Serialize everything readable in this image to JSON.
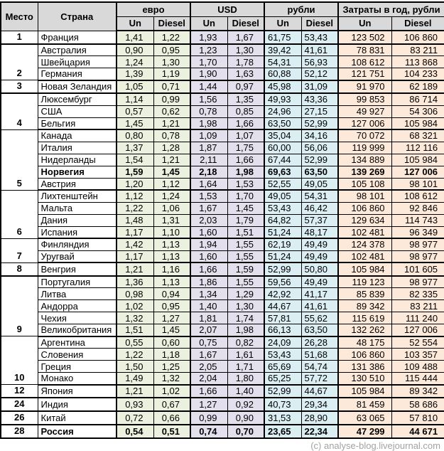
{
  "colors": {
    "euro_fill": "#ebf1de",
    "usd_fill": "#e4dfec",
    "rub_fill": "#daeef3",
    "year_fill": "#fde9d9",
    "header_fill": "#d9d9d9"
  },
  "chart_data": {
    "type": "table",
    "header": {
      "place": "Место",
      "country": "Страна",
      "sections": [
        "евро",
        "USD",
        "рубли",
        "Затраты в год, рубли"
      ],
      "sub": [
        "Un",
        "Diesel"
      ]
    },
    "groups": [
      {
        "place": "1",
        "rows": [
          {
            "country": "Франция",
            "v": [
              "1,41",
              "1,22",
              "1,93",
              "1,67",
              "61,75",
              "53,43",
              "123 502",
              "106 860"
            ]
          }
        ]
      },
      {
        "place": "2",
        "rows": [
          {
            "country": "Австралия",
            "v": [
              "0,90",
              "0,95",
              "1,23",
              "1,30",
              "39,42",
              "41,61",
              "78 831",
              "83 211"
            ]
          },
          {
            "country": "Швейцария",
            "v": [
              "1,24",
              "1,30",
              "1,70",
              "1,78",
              "54,31",
              "56,93",
              "108 612",
              "113 868"
            ]
          },
          {
            "country": "Германия",
            "v": [
              "1,39",
              "1,19",
              "1,90",
              "1,63",
              "60,88",
              "52,12",
              "121 751",
              "104 233"
            ]
          }
        ]
      },
      {
        "place": "3",
        "rows": [
          {
            "country": "Новая Зеландия",
            "v": [
              "1,05",
              "0,71",
              "1,44",
              "0,97",
              "45,98",
              "31,09",
              "91 970",
              "62 189"
            ]
          }
        ]
      },
      {
        "place": "4",
        "rows": [
          {
            "country": "Люксембург",
            "v": [
              "1,14",
              "0,99",
              "1,56",
              "1,35",
              "49,93",
              "43,36",
              "99 853",
              "86 714"
            ]
          },
          {
            "country": "США",
            "v": [
              "0,57",
              "0,62",
              "0,78",
              "0,85",
              "24,96",
              "27,15",
              "49 927",
              "54 306"
            ]
          },
          {
            "country": "Бельгия",
            "v": [
              "1,45",
              "1,21",
              "1,98",
              "1,66",
              "63,50",
              "52,99",
              "127 006",
              "105 984"
            ]
          }
        ]
      },
      {
        "place": "5",
        "rows": [
          {
            "country": "Канада",
            "v": [
              "0,80",
              "0,78",
              "1,09",
              "1,07",
              "35,04",
              "34,16",
              "70 072",
              "68 321"
            ]
          },
          {
            "country": "Италия",
            "v": [
              "1,37",
              "1,28",
              "1,87",
              "1,75",
              "60,00",
              "56,06",
              "119 999",
              "112 116"
            ]
          },
          {
            "country": "Нидерланды",
            "v": [
              "1,54",
              "1,21",
              "2,11",
              "1,66",
              "67,44",
              "52,99",
              "134 889",
              "105 984"
            ]
          },
          {
            "country": "Норвегия",
            "bold": true,
            "v": [
              "1,59",
              "1,45",
              "2,18",
              "1,98",
              "69,63",
              "63,50",
              "139 269",
              "127 006"
            ]
          },
          {
            "country": "Австрия",
            "v": [
              "1,20",
              "1,12",
              "1,64",
              "1,53",
              "52,55",
              "49,05",
              "105 108",
              "98 101"
            ]
          }
        ]
      },
      {
        "place": "6",
        "rows": [
          {
            "country": "Лихтенштейн",
            "v": [
              "1,12",
              "1,24",
              "1,53",
              "1,70",
              "49,05",
              "54,31",
              "98 101",
              "108 612"
            ]
          },
          {
            "country": "Мальта",
            "v": [
              "1,22",
              "1,06",
              "1,67",
              "1,45",
              "53,43",
              "46,42",
              "106 860",
              "92 846"
            ]
          },
          {
            "country": "Дания",
            "v": [
              "1,48",
              "1,31",
              "2,03",
              "1,79",
              "64,82",
              "57,37",
              "129 634",
              "114 743"
            ]
          },
          {
            "country": "Испания",
            "v": [
              "1,17",
              "1,10",
              "1,60",
              "1,51",
              "51,24",
              "48,17",
              "102 481",
              "96 349"
            ]
          }
        ]
      },
      {
        "place": "7",
        "rows": [
          {
            "country": "Финляндия",
            "v": [
              "1,42",
              "1,13",
              "1,94",
              "1,55",
              "62,19",
              "49,49",
              "124 378",
              "98 977"
            ]
          },
          {
            "country": "Уругвай",
            "v": [
              "1,17",
              "1,13",
              "1,60",
              "1,55",
              "51,24",
              "49,49",
              "102 481",
              "98 977"
            ]
          }
        ]
      },
      {
        "place": "8",
        "rows": [
          {
            "country": "Венгрия",
            "v": [
              "1,21",
              "1,16",
              "1,66",
              "1,59",
              "52,99",
              "50,80",
              "105 984",
              "101 605"
            ]
          }
        ]
      },
      {
        "place": "9",
        "rows": [
          {
            "country": "Португалия",
            "v": [
              "1,36",
              "1,13",
              "1,86",
              "1,55",
              "59,56",
              "49,49",
              "119 123",
              "98 977"
            ]
          },
          {
            "country": "Литва",
            "v": [
              "0,98",
              "0,94",
              "1,34",
              "1,29",
              "42,92",
              "41,17",
              "85 839",
              "82 335"
            ]
          },
          {
            "country": "Андорра",
            "v": [
              "1,02",
              "0,95",
              "1,40",
              "1,30",
              "44,67",
              "41,61",
              "89 342",
              "83 211"
            ]
          },
          {
            "country": "Чехия",
            "v": [
              "1,32",
              "1,27",
              "1,81",
              "1,74",
              "57,81",
              "55,62",
              "115 619",
              "111 240"
            ]
          },
          {
            "country": "Великобритания",
            "v": [
              "1,51",
              "1,45",
              "2,07",
              "1,98",
              "66,13",
              "63,50",
              "132 262",
              "127 006"
            ]
          }
        ]
      },
      {
        "place": "10",
        "rows": [
          {
            "country": "Аргентина",
            "v": [
              "0,55",
              "0,60",
              "0,75",
              "0,82",
              "24,09",
              "26,28",
              "48 175",
              "52 554"
            ]
          },
          {
            "country": "Словения",
            "v": [
              "1,22",
              "1,18",
              "1,67",
              "1,61",
              "53,43",
              "51,68",
              "106 860",
              "103 357"
            ]
          },
          {
            "country": "Греция",
            "v": [
              "1,50",
              "1,25",
              "2,05",
              "1,71",
              "65,69",
              "54,74",
              "131 386",
              "109 488"
            ]
          },
          {
            "country": "Монако",
            "v": [
              "1,49",
              "1,32",
              "2,04",
              "1,80",
              "65,25",
              "57,72",
              "130 510",
              "115 444"
            ]
          }
        ]
      },
      {
        "place": "12",
        "rows": [
          {
            "country": "Япония",
            "v": [
              "1,21",
              "1,02",
              "1,66",
              "1,40",
              "52,99",
              "44,67",
              "105 984",
              "89 342"
            ]
          }
        ]
      },
      {
        "place": "24",
        "rows": [
          {
            "country": "Индия",
            "v": [
              "0,93",
              "0,67",
              "1,27",
              "0,92",
              "40,73",
              "29,34",
              "81 459",
              "58 686"
            ]
          }
        ]
      },
      {
        "place": "26",
        "rows": [
          {
            "country": "Китай",
            "v": [
              "0,72",
              "0,66",
              "0,99",
              "0,90",
              "31,53",
              "28,90",
              "63 065",
              "57 810"
            ]
          }
        ]
      },
      {
        "place": "28",
        "rows": [
          {
            "country": "Россия",
            "bold": true,
            "v": [
              "0,54",
              "0,51",
              "0,74",
              "0,70",
              "23,65",
              "22,34",
              "47 299",
              "44 671"
            ]
          }
        ]
      }
    ],
    "footer": "(c) analyse-blog.livejournal.com"
  }
}
